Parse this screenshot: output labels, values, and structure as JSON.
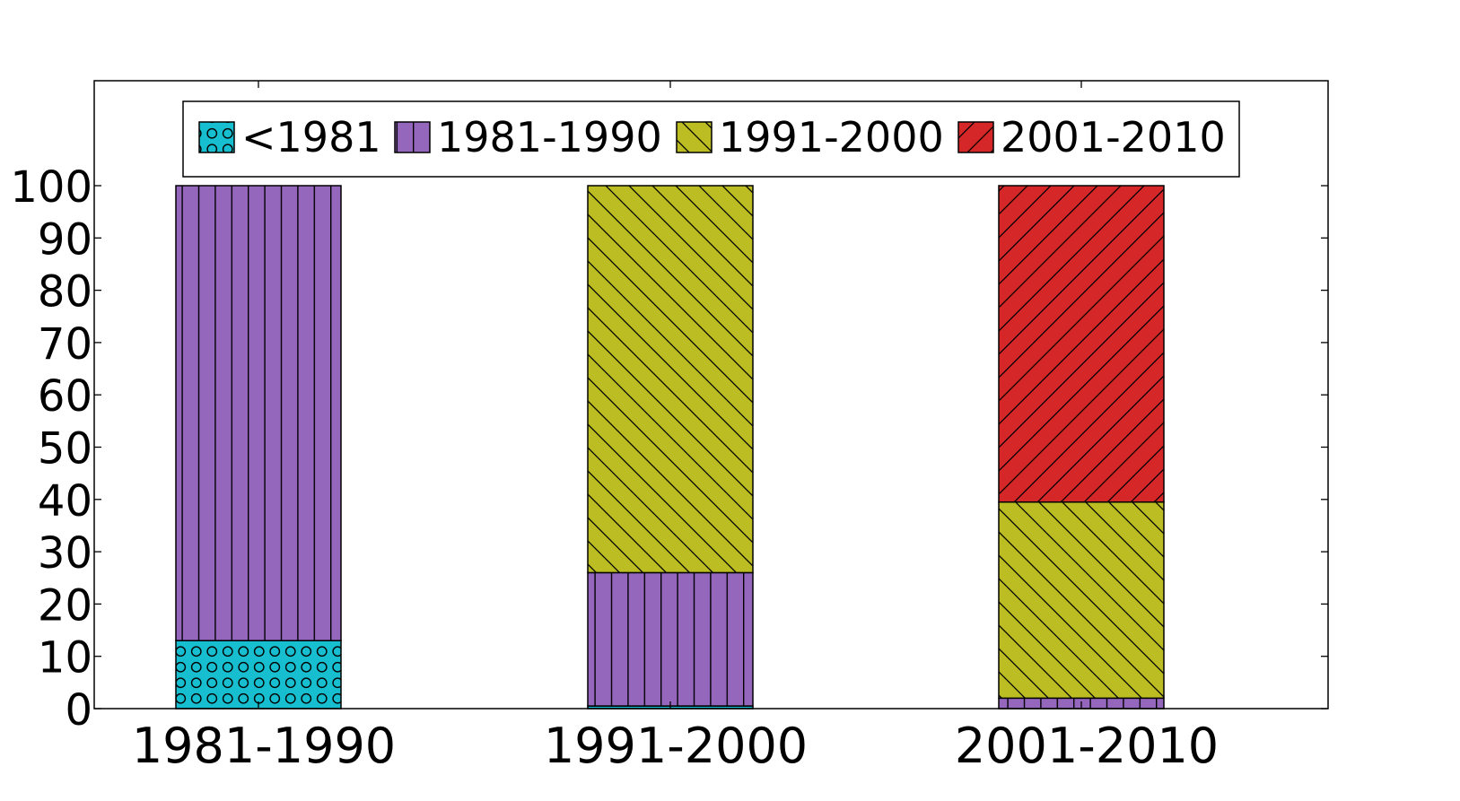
{
  "chart_data": {
    "type": "bar",
    "stacked": true,
    "categories": [
      "1981-1990",
      "1991-2000",
      "2001-2010"
    ],
    "series": [
      {
        "name": "<1981",
        "color": "#17becf",
        "hatch": "circles",
        "values": [
          13,
          0.5,
          0
        ]
      },
      {
        "name": "1981-1990",
        "color": "#9467bd",
        "hatch": "vertical",
        "values": [
          87,
          25.5,
          2
        ]
      },
      {
        "name": "1991-2000",
        "color": "#bcbd22",
        "hatch": "backslash",
        "values": [
          0,
          74,
          37.5
        ]
      },
      {
        "name": "2001-2010",
        "color": "#d62728",
        "hatch": "slash",
        "values": [
          0,
          0,
          60.5
        ]
      }
    ],
    "y_ticks": [
      0,
      10,
      20,
      30,
      40,
      50,
      60,
      70,
      80,
      90,
      100
    ],
    "ylim": [
      0,
      110
    ],
    "title": "",
    "xlabel": "",
    "ylabel": "",
    "legend_position": "top-center",
    "grid": false
  }
}
